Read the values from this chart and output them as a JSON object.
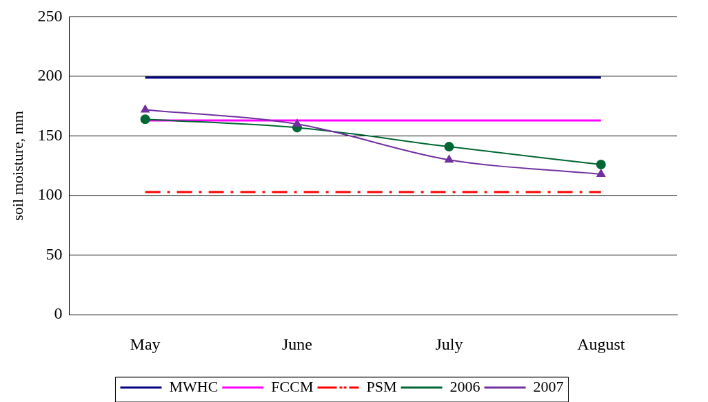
{
  "chart_data": {
    "type": "line",
    "ylabel": "soil moisture, mm",
    "categories": [
      "May",
      "June",
      "July",
      "August"
    ],
    "series": [
      {
        "name": "MWHC",
        "color": "#000080",
        "values": [
          199,
          199,
          199,
          199
        ],
        "marker": "none",
        "line_style": "solid"
      },
      {
        "name": "FCCM",
        "color": "#ff00ff",
        "values": [
          163,
          163,
          163,
          163
        ],
        "marker": "none",
        "line_style": "solid"
      },
      {
        "name": "PSM",
        "color": "#ff0000",
        "values": [
          103,
          103,
          103,
          103
        ],
        "marker": "none",
        "line_style": "dashed"
      },
      {
        "name": "2006",
        "color": "#006633",
        "values": [
          164,
          157,
          141,
          126
        ],
        "marker": "circle",
        "line_style": "solid"
      },
      {
        "name": "2007",
        "color": "#7030a0",
        "values": [
          172,
          160,
          130,
          118
        ],
        "marker": "triangle",
        "line_style": "solid"
      }
    ],
    "ylim": [
      0,
      250
    ],
    "yticks": [
      0,
      50,
      100,
      150,
      200,
      250
    ],
    "grid": "y",
    "legend": "bottom"
  }
}
